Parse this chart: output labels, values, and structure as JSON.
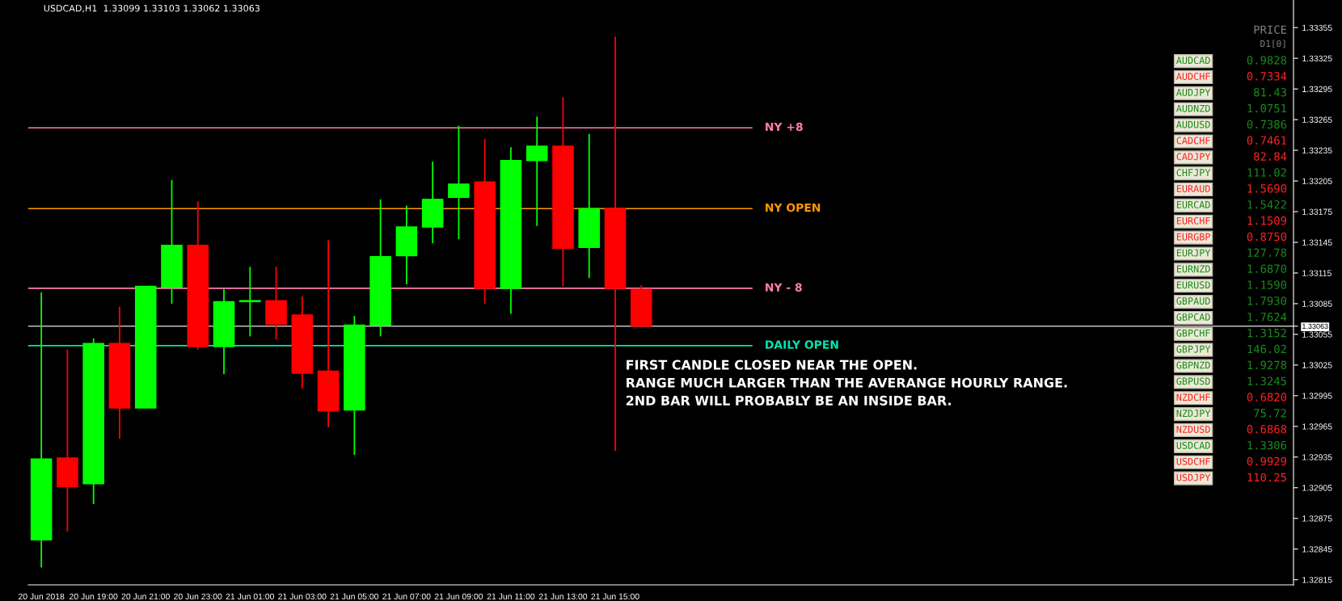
{
  "chart_data": [
    {
      "type": "candlestick",
      "title": "USDCAD,H1  1.33099 1.33103 1.33062 1.33063",
      "x": [
        "2018-06-20T17:00",
        "2018-06-20T18:00",
        "2018-06-20T19:00",
        "2018-06-20T20:00",
        "2018-06-20T21:00",
        "2018-06-20T22:00",
        "2018-06-20T23:00",
        "2018-06-21T00:00",
        "2018-06-21T01:00",
        "2018-06-21T02:00",
        "2018-06-21T03:00",
        "2018-06-21T04:00",
        "2018-06-21T05:00",
        "2018-06-21T06:00",
        "2018-06-21T07:00",
        "2018-06-21T08:00",
        "2018-06-21T09:00",
        "2018-06-21T10:00",
        "2018-06-21T11:00",
        "2018-06-21T12:00",
        "2018-06-21T13:00",
        "2018-06-21T14:00",
        "2018-06-21T15:00",
        "2018-06-21T16:00"
      ],
      "ohlc": [
        [
          1.32854,
          1.33096,
          1.32827,
          1.32933
        ],
        [
          1.32934,
          1.3304,
          1.32862,
          1.32906
        ],
        [
          1.32909,
          1.33051,
          1.32889,
          1.33046
        ],
        [
          1.33046,
          1.33082,
          1.32953,
          1.32983
        ],
        [
          1.32983,
          1.33102,
          1.32983,
          1.33102
        ],
        [
          1.33101,
          1.33206,
          1.33085,
          1.33142
        ],
        [
          1.33142,
          1.33185,
          1.3304,
          1.33043
        ],
        [
          1.33043,
          1.33099,
          1.33016,
          1.33087
        ],
        [
          1.33087,
          1.33121,
          1.33053,
          1.33088
        ],
        [
          1.33088,
          1.33121,
          1.3305,
          1.33065
        ],
        [
          1.33074,
          1.33092,
          1.33002,
          1.33017
        ],
        [
          1.33019,
          1.33147,
          1.32964,
          1.3298
        ],
        [
          1.32981,
          1.33073,
          1.32937,
          1.33064
        ],
        [
          1.33064,
          1.33187,
          1.33053,
          1.33131
        ],
        [
          1.33132,
          1.33181,
          1.33104,
          1.3316
        ],
        [
          1.3316,
          1.33224,
          1.33144,
          1.33187
        ],
        [
          1.33189,
          1.33259,
          1.33148,
          1.33202
        ],
        [
          1.33204,
          1.33246,
          1.33085,
          1.331
        ],
        [
          1.331,
          1.33238,
          1.33075,
          1.33225
        ],
        [
          1.33225,
          1.33268,
          1.33161,
          1.33239
        ],
        [
          1.33239,
          1.33287,
          1.33102,
          1.33139
        ],
        [
          1.3314,
          1.33251,
          1.3311,
          1.33178
        ],
        [
          1.33178,
          1.33346,
          1.32941,
          1.331
        ],
        [
          1.33099,
          1.33103,
          1.33062,
          1.33063
        ]
      ],
      "colors": [
        "#00ff00",
        "#ff0000",
        "#00ff00",
        "#ff0000",
        "#00ff00",
        "#00ff00",
        "#ff0000",
        "#00ff00",
        "#00ff00",
        "#ff0000",
        "#ff0000",
        "#ff0000",
        "#00ff00",
        "#00ff00",
        "#00ff00",
        "#00ff00",
        "#00ff00",
        "#ff0000",
        "#00ff00",
        "#00ff00",
        "#ff0000",
        "#00ff00",
        "#ff0000",
        "#ff0000"
      ],
      "xlim": [
        "2018-06-20T16:30",
        "2018-06-22T17:00"
      ],
      "xticks": [
        {
          "value": "2018-06-20T17:00",
          "label": "20 Jun 2018"
        },
        {
          "value": "2018-06-20T19:00",
          "label": "20 Jun 19:00"
        },
        {
          "value": "2018-06-20T21:00",
          "label": "20 Jun 21:00"
        },
        {
          "value": "2018-06-20T23:00",
          "label": "20 Jun 23:00"
        },
        {
          "value": "2018-06-21T01:00",
          "label": "21 Jun 01:00"
        },
        {
          "value": "2018-06-21T03:00",
          "label": "21 Jun 03:00"
        },
        {
          "value": "2018-06-21T05:00",
          "label": "21 Jun 05:00"
        },
        {
          "value": "2018-06-21T07:00",
          "label": "21 Jun 07:00"
        },
        {
          "value": "2018-06-21T09:00",
          "label": "21 Jun 09:00"
        },
        {
          "value": "2018-06-21T11:00",
          "label": "21 Jun 11:00"
        },
        {
          "value": "2018-06-21T13:00",
          "label": "21 Jun 13:00"
        },
        {
          "value": "2018-06-21T15:00",
          "label": "21 Jun 15:00"
        }
      ],
      "ylim": [
        1.3281,
        1.33382
      ],
      "yticks": [
        1.32815,
        1.32845,
        1.32875,
        1.32905,
        1.32935,
        1.32965,
        1.32995,
        1.33025,
        1.33055,
        {
          "value": 1.33063,
          "label": "1.33063"
        },
        1.33085,
        1.33115,
        1.33145,
        1.33175,
        1.33205,
        1.33235,
        1.33265,
        1.33295,
        1.33325,
        1.33355
      ],
      "ref_lines": [
        {
          "axis": "y",
          "value": 1.33063,
          "color": "#c0c0c0"
        },
        {
          "axis": "y",
          "value": 1.33257,
          "label": "NY +8",
          "color": "#ff7fae"
        },
        {
          "axis": "y",
          "value": 1.33178,
          "label": "NY OPEN",
          "color": "#ff9900"
        },
        {
          "axis": "y",
          "value": 1.331,
          "label": "NY - 8",
          "color": "#ff7fae"
        },
        {
          "axis": "y",
          "value": 1.33044,
          "label": "DAILY OPEN",
          "color": "#00e6b0"
        }
      ],
      "annotations": [
        "FIRST CANDLE CLOSED NEAR THE OPEN.\nRANGE MUCH LARGER THAN THE AVERANGE HOURLY RANGE.\n2ND BAR WILL PROBABLY BE AN INSIDE BAR."
      ]
    },
    {
      "type": "other",
      "title": "PRICE",
      "subtitle": "D1[0]",
      "categories": [
        "AUDCAD",
        "AUDCHF",
        "AUDJPY",
        "AUDNZD",
        "AUDUSD",
        "CADCHF",
        "CADJPY",
        "CHFJPY",
        "EURAUD",
        "EURCAD",
        "EURCHF",
        "EURGBP",
        "EURJPY",
        "EURNZD",
        "EURUSD",
        "GBPAUD",
        "GBPCAD",
        "GBPCHF",
        "GBPJPY",
        "GBPNZD",
        "GBPUSD",
        "NZDCHF",
        "NZDJPY",
        "NZDUSD",
        "USDCAD",
        "USDCHF",
        "USDJPY"
      ],
      "values": [
        0.9828,
        0.7334,
        81.43,
        1.0751,
        0.7386,
        0.7461,
        82.84,
        111.02,
        1.569,
        1.5422,
        1.1509,
        0.875,
        127.78,
        1.687,
        1.159,
        1.793,
        1.7624,
        1.3152,
        146.02,
        1.9278,
        1.3245,
        0.682,
        75.72,
        0.6868,
        1.3306,
        0.9929,
        110.25
      ],
      "colors": [
        "#1a8a1a",
        "#ff2020",
        "#1a8a1a",
        "#1a8a1a",
        "#1a8a1a",
        "#ff2020",
        "#ff2020",
        "#1a8a1a",
        "#ff2020",
        "#1a8a1a",
        "#ff2020",
        "#ff2020",
        "#1a8a1a",
        "#1a8a1a",
        "#1a8a1a",
        "#1a8a1a",
        "#1a8a1a",
        "#1a8a1a",
        "#1a8a1a",
        "#1a8a1a",
        "#1a8a1a",
        "#ff2020",
        "#1a8a1a",
        "#ff2020",
        "#1a8a1a",
        "#ff2020",
        "#ff2020"
      ],
      "value_labels": [
        "0.9828",
        "0.7334",
        "81.43",
        "1.0751",
        "0.7386",
        "0.7461",
        "82.84",
        "111.02",
        "1.5690",
        "1.5422",
        "1.1509",
        "0.8750",
        "127.78",
        "1.6870",
        "1.1590",
        "1.7930",
        "1.7624",
        "1.3152",
        "146.02",
        "1.9278",
        "1.3245",
        "0.6820",
        "75.72",
        "0.6868",
        "1.3306",
        "0.9929",
        "110.25"
      ],
      "data_labels": true
    }
  ]
}
